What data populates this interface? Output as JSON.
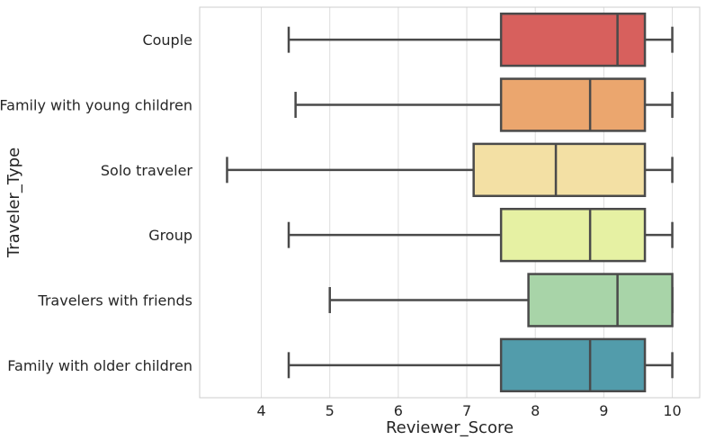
{
  "chart_data": {
    "type": "box",
    "orientation": "horizontal",
    "xlabel": "Reviewer_Score",
    "ylabel": "Traveler_Type",
    "xlim": [
      3.1,
      10.4
    ],
    "xticks": [
      4,
      5,
      6,
      7,
      8,
      9,
      10
    ],
    "grid": "vertical",
    "categories": [
      "Couple",
      "Family with young children",
      "Solo traveler",
      "Group",
      "Travelers with friends",
      "Family with older children"
    ],
    "boxes": [
      {
        "category": "Couple",
        "whisker_low": 4.4,
        "q1": 7.5,
        "median": 9.2,
        "q3": 9.6,
        "whisker_high": 10.0,
        "color": "#d7605d"
      },
      {
        "category": "Family with young children",
        "whisker_low": 4.5,
        "q1": 7.5,
        "median": 8.8,
        "q3": 9.6,
        "whisker_high": 10.0,
        "color": "#eba66e"
      },
      {
        "category": "Solo traveler",
        "whisker_low": 3.5,
        "q1": 7.1,
        "median": 8.3,
        "q3": 9.6,
        "whisker_high": 10.0,
        "color": "#f3e0a4"
      },
      {
        "category": "Group",
        "whisker_low": 4.4,
        "q1": 7.5,
        "median": 8.8,
        "q3": 9.6,
        "whisker_high": 10.0,
        "color": "#e6f1a3"
      },
      {
        "category": "Travelers with friends",
        "whisker_low": 5.0,
        "q1": 7.9,
        "median": 9.2,
        "q3": 10.0,
        "whisker_high": 10.0,
        "color": "#a8d4a8"
      },
      {
        "category": "Family with older children",
        "whisker_low": 4.4,
        "q1": 7.5,
        "median": 8.8,
        "q3": 9.6,
        "whisker_high": 10.0,
        "color": "#529cab"
      }
    ],
    "line_color": "#4a4a4a",
    "grid_color": "#dcdcdc",
    "frame_color": "#cccccc"
  }
}
